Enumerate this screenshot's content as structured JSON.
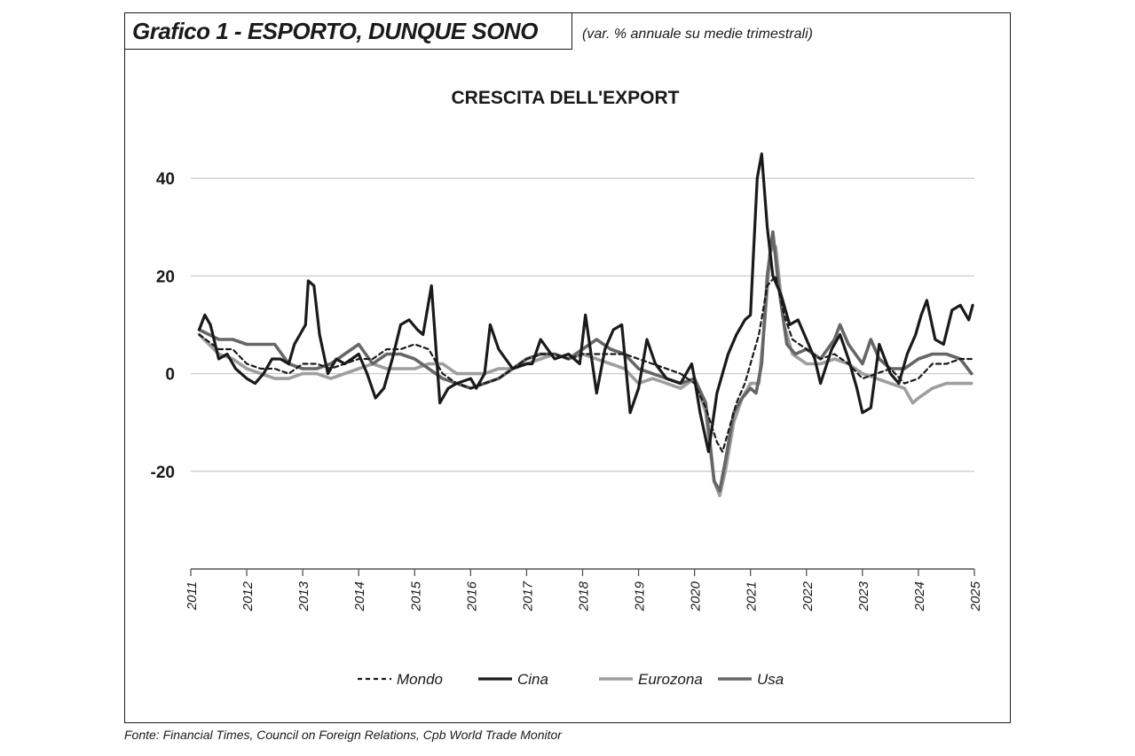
{
  "header": {
    "title": "Grafico 1 - ESPORTO, DUNQUE SONO",
    "subtitle": "(var. % annuale su medie trimestrali)"
  },
  "source": "Fonte: Financial Times, Council on Foreign Relations, Cpb World Trade Monitor",
  "colors": {
    "mondo": "#1a1a1a",
    "cina": "#1a1a1a",
    "eurozona": "#9e9e9e",
    "usa": "#666666",
    "grid": "#c8c8c8"
  },
  "chart_data": {
    "type": "line",
    "title": "CRESCITA DELL'EXPORT",
    "xlim": [
      2011,
      2025
    ],
    "ylim": [
      -40,
      50
    ],
    "y_ticks": [
      40,
      20,
      0,
      -20
    ],
    "y_tick_labels": [
      "40",
      "20",
      "0",
      "-20"
    ],
    "x_ticks": [
      2011,
      2012,
      2013,
      2014,
      2015,
      2016,
      2017,
      2018,
      2019,
      2020,
      2021,
      2022,
      2023,
      2024,
      2025
    ],
    "x_tick_labels": [
      "2011",
      "2012",
      "2013",
      "2014",
      "2015",
      "2016",
      "2017",
      "2018",
      "2019",
      "2020",
      "2021",
      "2022",
      "2023",
      "2024",
      "2025"
    ],
    "grid": "horizontal",
    "legend": "bottom",
    "series": [
      {
        "name": "Mondo",
        "style": "dashed",
        "x": [
          2011.15,
          2011.5,
          2011.75,
          2012.0,
          2012.25,
          2012.5,
          2012.75,
          2013.0,
          2013.25,
          2013.5,
          2013.75,
          2014.0,
          2014.25,
          2014.5,
          2014.75,
          2015.0,
          2015.25,
          2015.5,
          2015.75,
          2016.0,
          2016.25,
          2016.5,
          2016.75,
          2017.0,
          2017.25,
          2017.5,
          2017.75,
          2018.0,
          2018.25,
          2018.5,
          2018.75,
          2019.0,
          2019.25,
          2019.5,
          2019.75,
          2020.0,
          2020.2,
          2020.4,
          2020.5,
          2020.6,
          2020.75,
          2020.9,
          2021.0,
          2021.15,
          2021.3,
          2021.45,
          2021.6,
          2021.75,
          2022.0,
          2022.25,
          2022.5,
          2022.75,
          2023.0,
          2023.25,
          2023.5,
          2023.75,
          2024.0,
          2024.25,
          2024.5,
          2024.75,
          2024.95
        ],
        "values": [
          8,
          5,
          5,
          2,
          1,
          1,
          0,
          2,
          2,
          1,
          2,
          3,
          3,
          5,
          5,
          6,
          5,
          0,
          -2,
          -3,
          -2,
          -1,
          1,
          3,
          4,
          4,
          3,
          4,
          4,
          4,
          4,
          3,
          2,
          1,
          0,
          -2,
          -7,
          -14,
          -16,
          -12,
          -6,
          -2,
          2,
          8,
          18,
          20,
          12,
          7,
          5,
          3,
          4,
          2,
          -1,
          0,
          1,
          -2,
          -1,
          2,
          2,
          3,
          3
        ]
      },
      {
        "name": "Cina",
        "style": "solid",
        "x": [
          2011.15,
          2011.25,
          2011.35,
          2011.5,
          2011.65,
          2011.8,
          2012.0,
          2012.15,
          2012.3,
          2012.45,
          2012.6,
          2012.75,
          2012.85,
          2012.95,
          2013.05,
          2013.1,
          2013.2,
          2013.3,
          2013.45,
          2013.6,
          2013.75,
          2014.0,
          2014.15,
          2014.3,
          2014.45,
          2014.6,
          2014.75,
          2014.9,
          2015.05,
          2015.15,
          2015.3,
          2015.45,
          2015.6,
          2015.75,
          2016.0,
          2016.1,
          2016.25,
          2016.35,
          2016.5,
          2016.75,
          2017.0,
          2017.1,
          2017.25,
          2017.5,
          2017.75,
          2017.95,
          2018.05,
          2018.25,
          2018.4,
          2018.55,
          2018.7,
          2018.85,
          2019.0,
          2019.15,
          2019.3,
          2019.5,
          2019.75,
          2019.95,
          2020.0,
          2020.1,
          2020.25,
          2020.4,
          2020.6,
          2020.75,
          2020.9,
          2021.0,
          2021.05,
          2021.12,
          2021.2,
          2021.3,
          2021.4,
          2021.55,
          2021.7,
          2021.85,
          2022.0,
          2022.15,
          2022.25,
          2022.45,
          2022.6,
          2022.75,
          2022.9,
          2023.0,
          2023.15,
          2023.3,
          2023.5,
          2023.65,
          2023.8,
          2023.95,
          2024.05,
          2024.15,
          2024.3,
          2024.45,
          2024.6,
          2024.75,
          2024.9,
          2024.97
        ],
        "values": [
          9,
          12,
          10,
          3,
          4,
          1,
          -1,
          -2,
          0,
          3,
          3,
          2,
          6,
          8,
          10,
          19,
          18,
          8,
          0,
          3,
          2,
          4,
          0,
          -5,
          -3,
          3,
          10,
          11,
          9,
          8,
          18,
          -6,
          -3,
          -2,
          -1,
          -3,
          0,
          10,
          5,
          1,
          2,
          2,
          7,
          3,
          4,
          2,
          12,
          -4,
          5,
          9,
          10,
          -8,
          -3,
          7,
          2,
          -1,
          -2,
          2,
          -1,
          -8,
          -16,
          -4,
          4,
          8,
          11,
          12,
          24,
          40,
          45,
          30,
          20,
          16,
          10,
          11,
          7,
          3,
          -2,
          5,
          8,
          3,
          -3,
          -8,
          -7,
          6,
          0,
          -2,
          4,
          8,
          12,
          15,
          7,
          6,
          13,
          14,
          11,
          14
        ]
      },
      {
        "name": "Eurozona",
        "style": "solid",
        "x": [
          2011.15,
          2011.5,
          2011.75,
          2012.0,
          2012.25,
          2012.5,
          2012.75,
          2013.0,
          2013.25,
          2013.5,
          2013.75,
          2014.0,
          2014.25,
          2014.5,
          2014.75,
          2015.0,
          2015.25,
          2015.5,
          2015.75,
          2016.0,
          2016.25,
          2016.5,
          2016.75,
          2017.0,
          2017.25,
          2017.5,
          2017.75,
          2018.0,
          2018.25,
          2018.5,
          2018.75,
          2019.0,
          2019.25,
          2019.5,
          2019.75,
          2020.0,
          2020.2,
          2020.35,
          2020.45,
          2020.55,
          2020.7,
          2020.85,
          2021.0,
          2021.15,
          2021.25,
          2021.35,
          2021.45,
          2021.6,
          2021.75,
          2022.0,
          2022.25,
          2022.5,
          2022.75,
          2023.0,
          2023.25,
          2023.5,
          2023.75,
          2023.9,
          2024.0,
          2024.25,
          2024.5,
          2024.75,
          2024.95
        ],
        "values": [
          8,
          4,
          3,
          1,
          0,
          -1,
          -1,
          0,
          0,
          -1,
          0,
          1,
          2,
          1,
          1,
          1,
          2,
          2,
          0,
          0,
          0,
          1,
          1,
          2,
          3,
          4,
          3,
          4,
          3,
          2,
          1,
          -2,
          -1,
          -2,
          -3,
          -1,
          -8,
          -22,
          -25,
          -20,
          -10,
          -5,
          -2,
          -2,
          10,
          25,
          26,
          10,
          4,
          2,
          2,
          3,
          2,
          0,
          -1,
          -2,
          -3,
          -6,
          -5,
          -3,
          -2,
          -2,
          -2
        ]
      },
      {
        "name": "Usa",
        "style": "solid",
        "x": [
          2011.15,
          2011.5,
          2011.75,
          2012.0,
          2012.25,
          2012.5,
          2012.75,
          2013.0,
          2013.25,
          2013.5,
          2013.75,
          2014.0,
          2014.25,
          2014.5,
          2014.75,
          2015.0,
          2015.25,
          2015.5,
          2015.75,
          2016.0,
          2016.25,
          2016.5,
          2016.75,
          2017.0,
          2017.25,
          2017.5,
          2017.75,
          2018.0,
          2018.25,
          2018.5,
          2018.75,
          2019.0,
          2019.25,
          2019.5,
          2019.75,
          2020.0,
          2020.2,
          2020.35,
          2020.45,
          2020.55,
          2020.7,
          2020.85,
          2021.0,
          2021.1,
          2021.2,
          2021.3,
          2021.4,
          2021.5,
          2021.65,
          2021.8,
          2022.0,
          2022.25,
          2022.5,
          2022.6,
          2022.75,
          2023.0,
          2023.15,
          2023.3,
          2023.5,
          2023.75,
          2024.0,
          2024.25,
          2024.5,
          2024.75,
          2024.95
        ],
        "values": [
          9,
          7,
          7,
          6,
          6,
          6,
          2,
          1,
          1,
          2,
          4,
          6,
          2,
          4,
          4,
          3,
          1,
          -1,
          -2,
          -3,
          -2,
          -1,
          1,
          3,
          4,
          4,
          3,
          5,
          7,
          5,
          4,
          1,
          0,
          -1,
          -2,
          -1,
          -6,
          -22,
          -24,
          -18,
          -8,
          -5,
          -3,
          -4,
          2,
          20,
          29,
          18,
          6,
          4,
          5,
          3,
          7,
          10,
          6,
          2,
          7,
          3,
          1,
          1,
          3,
          4,
          4,
          3,
          0
        ]
      }
    ]
  }
}
